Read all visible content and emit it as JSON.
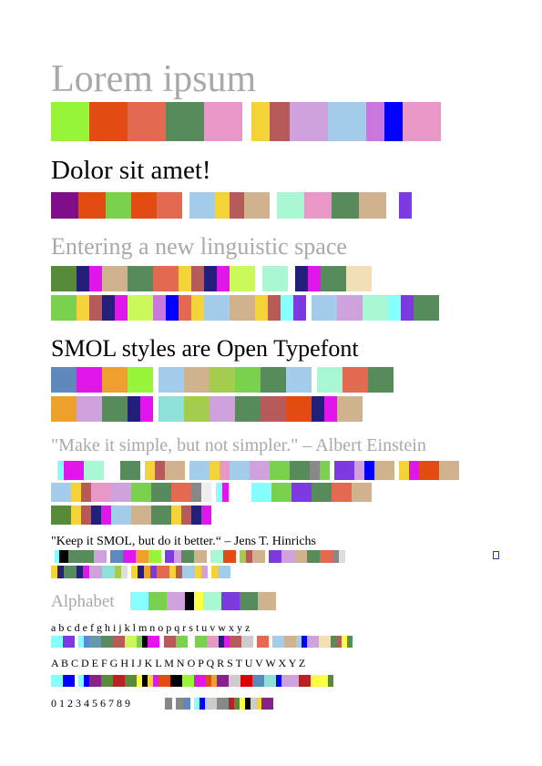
{
  "texts": {
    "lorem": "Lorem ipsum",
    "dolor": "Dolor sit amet!",
    "entering": "Entering a new linguistic space",
    "smol": "SMOL styles are Open Typefont",
    "quote_einstein": "\"Make it simple, but not simpler.\" – Albert Einstein",
    "quote_hinrichs": "\"Keep it SMOL, but do it better.“ – Jens T. Hinrichs",
    "alphabet": "Alphabet",
    "lowercase": "a b c d e f g h i j k l m n o p q r s t u v w x y z",
    "uppercase": "A B C D E F G H I J K L M N O P Q R S T U V W X Y Z",
    "digits": "0 1 2 3 4 5 6 7 8 9"
  },
  "colors": {
    "heading_gray": "#a9a9a9",
    "text_black": "#000000",
    "marker_blue": "#2233dd"
  },
  "strips": {
    "lorem": [
      [
        "#98f53a",
        42
      ],
      [
        "#e24c12",
        42
      ],
      [
        "#e36a50",
        42
      ],
      [
        "#578b5c",
        42
      ],
      [
        "#e897c6",
        42
      ],
      [
        null,
        10
      ],
      [
        "#f4d33a",
        20
      ],
      [
        "#b75b5a",
        22
      ],
      [
        "#cfa1dd",
        42
      ],
      [
        "#a3cdea",
        42
      ],
      [
        "#c977dc",
        20
      ],
      [
        "#0000ff",
        20
      ],
      [
        "#e897c6",
        42
      ]
    ],
    "dolor": [
      [
        "#7f0e88",
        30
      ],
      [
        "#e24c12",
        30
      ],
      [
        "#7ad14e",
        28
      ],
      [
        "#e24c12",
        28
      ],
      [
        "#e36a50",
        28
      ],
      [
        null,
        8
      ],
      [
        "#a3cdea",
        28
      ],
      [
        "#f4d33a",
        16
      ],
      [
        "#b75b5a",
        16
      ],
      [
        "#d0b38e",
        28
      ],
      [
        null,
        8
      ],
      [
        "#aaf7d4",
        30
      ],
      [
        "#e897c6",
        30
      ],
      [
        "#578b5c",
        30
      ],
      [
        "#d0b38e",
        30
      ],
      [
        null,
        14
      ],
      [
        "#7d3ae0",
        14
      ]
    ],
    "entering1": [
      [
        "#578b3a",
        28
      ],
      [
        "#24207a",
        14
      ],
      [
        "#e016ea",
        14
      ],
      [
        "#d0b38e",
        28
      ],
      [
        "#578b5c",
        28
      ],
      [
        "#e36a50",
        28
      ],
      [
        "#f4d33a",
        14
      ],
      [
        "#b75b5a",
        14
      ],
      [
        "#24207a",
        14
      ],
      [
        "#e016ea",
        14
      ],
      [
        "#ccf95a",
        28
      ],
      [
        null,
        8
      ],
      [
        "#aaf7d4",
        28
      ],
      [
        null,
        8
      ],
      [
        "#24207a",
        14
      ],
      [
        "#e016ea",
        14
      ],
      [
        "#578b5c",
        28
      ],
      [
        "#f2dfb6",
        28
      ]
    ],
    "entering2": [
      [
        "#7ad14e",
        28
      ],
      [
        "#f4d33a",
        14
      ],
      [
        "#b75b5a",
        14
      ],
      [
        "#24207a",
        14
      ],
      [
        "#e016ea",
        14
      ],
      [
        "#ccf95a",
        28
      ],
      [
        "#c977dc",
        14
      ],
      [
        "#0000ff",
        14
      ],
      [
        "#e36a50",
        14
      ],
      [
        "#f4d33a",
        14
      ],
      [
        "#a3cdea",
        28
      ],
      [
        "#d0b38e",
        28
      ],
      [
        "#f4d33a",
        14
      ],
      [
        "#b75b5a",
        14
      ],
      [
        "#88ffff",
        14
      ],
      [
        "#7d3ae0",
        14
      ],
      [
        null,
        6
      ],
      [
        "#a3cdea",
        28
      ],
      [
        "#cfa1dd",
        28
      ],
      [
        "#aaf7d4",
        28
      ],
      [
        "#88ffff",
        14
      ],
      [
        "#7d3ae0",
        14
      ],
      [
        "#578b5c",
        28
      ]
    ],
    "smol1": [
      [
        "#5f88bd",
        28
      ],
      [
        "#e016ea",
        28
      ],
      [
        "#eda02b",
        28
      ],
      [
        "#98f53a",
        28
      ],
      [
        null,
        6
      ],
      [
        "#a3cdea",
        28
      ],
      [
        "#d0b38e",
        28
      ],
      [
        "#a5cc4c",
        28
      ],
      [
        "#7ad14e",
        28
      ],
      [
        "#578b5c",
        28
      ],
      [
        "#a3cdea",
        28
      ],
      [
        null,
        6
      ],
      [
        "#aaf7d4",
        28
      ],
      [
        "#e36a50",
        28
      ],
      [
        "#578b5c",
        28
      ]
    ],
    "smol2": [
      [
        "#eda02b",
        28
      ],
      [
        "#cfa1dd",
        28
      ],
      [
        "#578b5c",
        28
      ],
      [
        "#24207a",
        14
      ],
      [
        "#e016ea",
        14
      ],
      [
        null,
        6
      ],
      [
        "#8fe0d8",
        28
      ],
      [
        "#a5cc4c",
        28
      ],
      [
        "#cfa1dd",
        28
      ],
      [
        "#578b5c",
        28
      ],
      [
        "#b75b5a",
        28
      ],
      [
        "#e24c12",
        28
      ],
      [
        "#24207a",
        14
      ],
      [
        "#e016ea",
        14
      ],
      [
        "#d0b38e",
        28
      ]
    ],
    "einstein1": [
      [
        null,
        7
      ],
      [
        "#88ffff",
        7
      ],
      [
        "#e016ea",
        22
      ],
      [
        "#aaf7d4",
        22
      ],
      [
        null,
        18
      ],
      [
        "#578b5c",
        22
      ],
      [
        null,
        5
      ],
      [
        "#f4d33a",
        11
      ],
      [
        "#b75b5a",
        11
      ],
      [
        "#d0b38e",
        22
      ],
      [
        null,
        5
      ],
      [
        "#a3cdea",
        22
      ],
      [
        "#f4d33a",
        11
      ],
      [
        "#e897c6",
        11
      ],
      [
        "#a3cdea",
        22
      ],
      [
        "#cfa1dd",
        22
      ],
      [
        "#7ad14e",
        22
      ],
      [
        "#578b5c",
        22
      ],
      [
        "#888888",
        11
      ],
      [
        "#7ad14e",
        11
      ],
      [
        null,
        5
      ],
      [
        "#7d3ae0",
        22
      ],
      [
        "#cfa1dd",
        11
      ],
      [
        "#0000ff",
        11
      ],
      [
        "#d0b38e",
        22
      ],
      [
        null,
        5
      ],
      [
        "#f4d33a",
        11
      ],
      [
        "#e016ea",
        11
      ],
      [
        "#e24c12",
        22
      ],
      [
        "#d0b38e",
        22
      ]
    ],
    "einstein2": [
      [
        "#a3cdea",
        22
      ],
      [
        "#f4d33a",
        11
      ],
      [
        "#b75b5a",
        11
      ],
      [
        "#e897c6",
        22
      ],
      [
        "#cfa1dd",
        22
      ],
      [
        "#7ad14e",
        22
      ],
      [
        "#578b5c",
        22
      ],
      [
        "#e36a50",
        22
      ],
      [
        "#888888",
        11
      ],
      [
        "#eeeeee",
        11
      ],
      [
        null,
        5
      ],
      [
        "#88ffff",
        7
      ],
      [
        "#e016ea",
        7
      ],
      [
        null,
        25
      ],
      [
        "#88ffff",
        22
      ],
      [
        "#7ad14e",
        22
      ],
      [
        "#7d3ae0",
        22
      ],
      [
        "#578b5c",
        22
      ],
      [
        "#e36a50",
        22
      ],
      [
        "#d0b38e",
        22
      ]
    ],
    "einstein3": [
      [
        "#578b3a",
        22
      ],
      [
        "#f4d33a",
        11
      ],
      [
        "#b75b5a",
        11
      ],
      [
        "#24207a",
        11
      ],
      [
        "#e016ea",
        11
      ],
      [
        "#a3cdea",
        22
      ],
      [
        "#d0b38e",
        22
      ],
      [
        "#578b5c",
        22
      ],
      [
        "#f4d33a",
        11
      ],
      [
        "#b75b5a",
        11
      ],
      [
        "#24207a",
        11
      ],
      [
        "#e016ea",
        11
      ]
    ],
    "hinrichs1": [
      [
        null,
        4
      ],
      [
        "#88ffff",
        5
      ],
      [
        "#000000",
        10
      ],
      [
        "#578b5c",
        14
      ],
      [
        "#578b5c",
        14
      ],
      [
        "#cfa1dd",
        14
      ],
      [
        null,
        4
      ],
      [
        "#5f88bd",
        14
      ],
      [
        "#e016ea",
        14
      ],
      [
        "#eda02b",
        14
      ],
      [
        "#98f53a",
        14
      ],
      [
        null,
        4
      ],
      [
        "#7d3ae0",
        10
      ],
      [
        "#cfa1dd",
        8
      ],
      [
        "#578b5c",
        14
      ],
      [
        "#d0b38e",
        14
      ],
      [
        null,
        4
      ],
      [
        "#aaf7d4",
        14
      ],
      [
        "#e24c12",
        14
      ],
      [
        null,
        4
      ],
      [
        "#a5cc4c",
        7
      ],
      [
        "#b75b5a",
        7
      ],
      [
        "#d0b38e",
        14
      ],
      [
        null,
        4
      ],
      [
        "#7d3ae0",
        14
      ],
      [
        "#cfa1dd",
        14
      ],
      [
        "#d0b38e",
        14
      ],
      [
        "#578b5c",
        14
      ],
      [
        "#e36a50",
        14
      ],
      [
        "#888888",
        7
      ],
      [
        "#dddddd",
        7
      ]
    ],
    "hinrichs2": [
      [
        "#f4d33a",
        7
      ],
      [
        "#24207a",
        7
      ],
      [
        "#578b5c",
        14
      ],
      [
        "#24207a",
        7
      ],
      [
        "#e016ea",
        7
      ],
      [
        "#cfa1dd",
        14
      ],
      [
        "#8fe0d8",
        14
      ],
      [
        "#a5cc4c",
        7
      ],
      [
        "#dddddd",
        7
      ],
      [
        null,
        4
      ],
      [
        "#f4d33a",
        7
      ],
      [
        "#24207a",
        7
      ],
      [
        "#eda02b",
        7
      ],
      [
        "#7d3ae0",
        7
      ],
      [
        "#e36a50",
        14
      ],
      [
        "#f4d33a",
        7
      ],
      [
        "#b75b5a",
        7
      ],
      [
        "#a3cdea",
        14
      ],
      [
        "#f4d33a",
        7
      ],
      [
        "#cfa1dd",
        7
      ],
      [
        null,
        4
      ],
      [
        "#f4d33a",
        7
      ],
      [
        "#a3cdea",
        14
      ]
    ],
    "alphabet": [
      [
        "#88ffff",
        20
      ],
      [
        "#7ad14e",
        20
      ],
      [
        "#cfa1dd",
        20
      ],
      [
        "#000000",
        10
      ],
      [
        "#ffff44",
        10
      ],
      [
        "#aaf7d4",
        20
      ],
      [
        "#7d3ae0",
        20
      ],
      [
        "#578b5c",
        20
      ],
      [
        "#d0b38e",
        20
      ]
    ],
    "lower": [
      [
        "#88ffff",
        13
      ],
      [
        "#7d3ae0",
        13
      ],
      [
        null,
        4
      ],
      [
        "#88ffff",
        6
      ],
      [
        "#578bdd",
        6
      ],
      [
        "#6699aa",
        13
      ],
      [
        "#578b5c",
        13
      ],
      [
        "#b75b5a",
        13
      ],
      [
        "#ccf95a",
        13
      ],
      [
        "#7ad14e",
        6
      ],
      [
        "#000000",
        6
      ],
      [
        "#e016ea",
        13
      ],
      [
        null,
        5
      ],
      [
        "#b75b5a",
        13
      ],
      [
        "#7ad14e",
        13
      ],
      [
        null,
        8
      ],
      [
        "#7ad14e",
        13
      ],
      [
        "#e897c6",
        13
      ],
      [
        "#24207a",
        6
      ],
      [
        "#e016ea",
        6
      ],
      [
        "#b75b5a",
        13
      ],
      [
        "#cccccc",
        13
      ],
      [
        null,
        4
      ],
      [
        "#e36a50",
        13
      ],
      [
        null,
        4
      ],
      [
        "#a3cdea",
        13
      ],
      [
        "#d0b38e",
        13
      ],
      [
        "#a3cdea",
        6
      ],
      [
        "#0000ff",
        6
      ],
      [
        "#cfa1dd",
        13
      ],
      [
        "#f2dfb6",
        13
      ],
      [
        "#578b5c",
        6
      ],
      [
        "#b75b5a",
        6
      ],
      [
        "#ffff44",
        6
      ],
      [
        "#578b5c",
        6
      ]
    ],
    "upper": [
      [
        "#88ffff",
        13
      ],
      [
        "#0000ff",
        13
      ],
      [
        null,
        4
      ],
      [
        "#88ffff",
        6
      ],
      [
        "#0000ff",
        6
      ],
      [
        "#882288",
        13
      ],
      [
        "#578b3a",
        13
      ],
      [
        "#b72222",
        13
      ],
      [
        "#578b3a",
        13
      ],
      [
        "#ffff44",
        6
      ],
      [
        "#000000",
        6
      ],
      [
        "#f4d33a",
        6
      ],
      [
        "#e016ea",
        6
      ],
      [
        "#e24c12",
        13
      ],
      [
        "#000000",
        13
      ],
      [
        "#98f53a",
        13
      ],
      [
        "#e016ea",
        13
      ],
      [
        "#e24c12",
        6
      ],
      [
        "#eda02b",
        6
      ],
      [
        "#882288",
        13
      ],
      [
        "#cccccc",
        13
      ],
      [
        "#dd0000",
        13
      ],
      [
        "#578bbb",
        13
      ],
      [
        "#8fe0d8",
        13
      ],
      [
        "#0000ff",
        6
      ],
      [
        "#cfa1dd",
        6
      ],
      [
        "#cfa1dd",
        13
      ],
      [
        "#b72222",
        13
      ],
      [
        "#ffff44",
        13
      ],
      [
        "#ffff44",
        6
      ],
      [
        "#578b3a",
        6
      ]
    ],
    "digits": [
      [
        "#888888",
        8
      ],
      [
        null,
        4
      ],
      [
        "#888888",
        8
      ],
      [
        "#5f88bd",
        8
      ],
      [
        null,
        4
      ],
      [
        "#88ffff",
        6
      ],
      [
        "#0000ff",
        6
      ],
      [
        "#cccccc",
        13
      ],
      [
        "#888888",
        13
      ],
      [
        "#b72222",
        6
      ],
      [
        "#578b3a",
        6
      ],
      [
        "#ffff44",
        6
      ],
      [
        "#000000",
        6
      ],
      [
        "#cccccc",
        6
      ],
      [
        "#f4d33a",
        6
      ],
      [
        "#882288",
        13
      ]
    ]
  }
}
